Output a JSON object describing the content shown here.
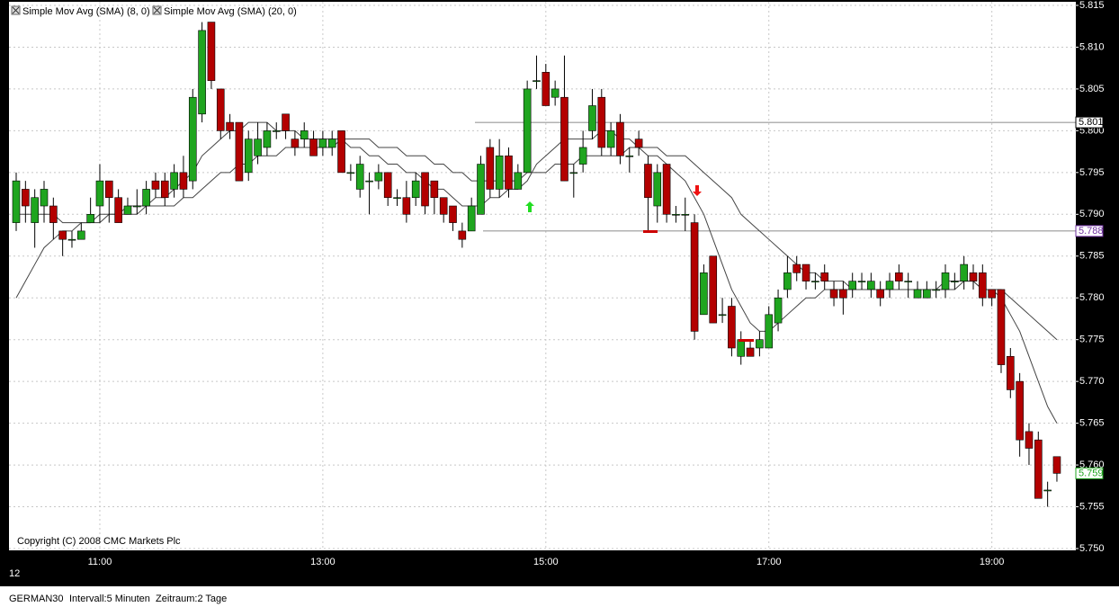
{
  "chart_data": {
    "type": "candlestick",
    "legend": [
      "Simple Mov Avg (SMA) (8, 0)",
      "Simple Mov Avg (SMA) (20, 0)"
    ],
    "copyright": "Copyright (C) 2008 CMC Markets Plc",
    "date_label": "12",
    "instrument": "GERMAN30",
    "interval": "Intervall:5 Minuten",
    "period": "Zeitraum:2 Tage",
    "up_color": "#1fa51f",
    "down_color": "#b30000",
    "grid": true,
    "categories": [
      null,
      null,
      null,
      null,
      null,
      null,
      null,
      null,
      null,
      "11:00",
      null,
      null,
      null,
      null,
      null,
      null,
      null,
      null,
      null,
      null,
      null,
      null,
      null,
      null,
      null,
      null,
      null,
      null,
      null,
      null,
      null,
      null,
      null,
      "13:00",
      null,
      null,
      null,
      null,
      null,
      null,
      null,
      null,
      null,
      null,
      null,
      null,
      null,
      null,
      null,
      null,
      null,
      null,
      null,
      null,
      null,
      null,
      null,
      "15:00",
      null,
      null,
      null,
      null,
      null,
      null,
      null,
      null,
      null,
      null,
      null,
      null,
      null,
      null,
      null,
      null,
      null,
      null,
      null,
      null,
      null,
      null,
      null,
      "17:00",
      null,
      null,
      null,
      null,
      null,
      null,
      null,
      null,
      null,
      null,
      null,
      null,
      null,
      null,
      null,
      null,
      null,
      null,
      null,
      null,
      null,
      null,
      null,
      "19:00",
      null,
      null,
      null,
      null,
      null,
      null,
      null
    ],
    "open": [
      5789,
      5793,
      5789,
      5791,
      5791,
      5788,
      5787,
      5787,
      5789,
      5791,
      5794,
      5792,
      5790,
      5791,
      5791,
      5794,
      5794,
      5793,
      5795,
      5794,
      5802,
      5813,
      5805,
      5801,
      5801,
      5795,
      5797,
      5798,
      5800,
      5802,
      5799,
      5799,
      5799,
      5798,
      5798,
      5800,
      5795,
      5793,
      5794,
      5794,
      5795,
      5792,
      5792,
      5792,
      5795,
      5794,
      5792,
      5791,
      5788,
      5788,
      5790,
      5798,
      5793,
      5797,
      5793,
      5795,
      5806,
      5807,
      5804,
      5804,
      5795,
      5796,
      5800,
      5804,
      5798,
      5801,
      5797,
      5799,
      5796,
      5791,
      5796,
      5790,
      5790,
      5789,
      5778,
      5785,
      5778,
      5779,
      5773,
      5774,
      5774,
      5774,
      5777,
      5781,
      5784,
      5784,
      5782,
      5783,
      5781,
      5781,
      5781,
      5782,
      5781,
      5781,
      5781,
      5783,
      5782,
      5780,
      5780,
      5781,
      5781,
      5782,
      5782,
      5783,
      5783,
      5781,
      5781,
      5773,
      5770,
      5764,
      5763,
      5757,
      5761
    ],
    "high": [
      5795,
      5794,
      5793,
      5794,
      5792,
      5788,
      5788,
      5789,
      5792,
      5796,
      5794,
      5793,
      5792,
      5793,
      5794,
      5795,
      5795,
      5796,
      5797,
      5805,
      5813,
      5813,
      5805,
      5802,
      5801,
      5800,
      5801,
      5801,
      5801,
      5802,
      5800,
      5801,
      5800,
      5800,
      5800,
      5800,
      5796,
      5797,
      5795,
      5796,
      5795,
      5793,
      5794,
      5795,
      5795,
      5794,
      5792,
      5791,
      5789,
      5792,
      5797,
      5799,
      5799,
      5798,
      5796,
      5806,
      5809,
      5808,
      5806,
      5809,
      5796,
      5800,
      5805,
      5805,
      5801,
      5802,
      5798,
      5800,
      5797,
      5796,
      5796,
      5791,
      5792,
      5790,
      5784,
      5785,
      5780,
      5780,
      5776,
      5775,
      5776,
      5779,
      5781,
      5785,
      5785,
      5784,
      5783,
      5784,
      5782,
      5782,
      5783,
      5783,
      5783,
      5782,
      5783,
      5784,
      5783,
      5782,
      5782,
      5782,
      5784,
      5783,
      5785,
      5784,
      5784,
      5781,
      5781,
      5774,
      5771,
      5765,
      5764,
      5758,
      5761
    ],
    "low": [
      5788,
      5789,
      5786,
      5789,
      5787,
      5785,
      5786,
      5787,
      5789,
      5789,
      5789,
      5789,
      5790,
      5790,
      5790,
      5792,
      5791,
      5792,
      5792,
      5793,
      5801,
      5805,
      5799,
      5799,
      5794,
      5794,
      5796,
      5797,
      5799,
      5799,
      5797,
      5798,
      5797,
      5797,
      5797,
      5795,
      5794,
      5792,
      5790,
      5793,
      5791,
      5791,
      5789,
      5791,
      5790,
      5790,
      5789,
      5788,
      5786,
      5788,
      5790,
      5792,
      5792,
      5792,
      5793,
      5795,
      5805,
      5803,
      5803,
      5794,
      5792,
      5795,
      5799,
      5797,
      5797,
      5796,
      5795,
      5797,
      5788,
      5789,
      5789,
      5789,
      5788,
      5775,
      5778,
      5777,
      5777,
      5773,
      5772,
      5773,
      5773,
      5774,
      5776,
      5780,
      5782,
      5781,
      5781,
      5781,
      5779,
      5778,
      5780,
      5781,
      5780,
      5779,
      5780,
      5781,
      5780,
      5780,
      5780,
      5780,
      5780,
      5781,
      5781,
      5781,
      5779,
      5779,
      5771,
      5768,
      5761,
      5760,
      5756,
      5755,
      5758
    ],
    "close": [
      5794,
      5791,
      5792,
      5793,
      5789,
      5787,
      5787,
      5788,
      5790,
      5794,
      5792,
      5789,
      5791,
      5791,
      5793,
      5793,
      5792,
      5795,
      5793,
      5804,
      5812,
      5806,
      5800,
      5800,
      5794,
      5799,
      5799,
      5800,
      5800,
      5800,
      5798,
      5800,
      5797,
      5799,
      5799,
      5795,
      5795,
      5796,
      5794,
      5795,
      5792,
      5792,
      5790,
      5794,
      5791,
      5792,
      5790,
      5789,
      5787,
      5791,
      5796,
      5793,
      5797,
      5793,
      5795,
      5805,
      5806,
      5803,
      5805,
      5794,
      5795,
      5798,
      5803,
      5798,
      5800,
      5797,
      5797,
      5798,
      5792,
      5795,
      5790,
      5790,
      5790,
      5776,
      5783,
      5777,
      5778,
      5774,
      5775,
      5773,
      5775,
      5778,
      5780,
      5783,
      5783,
      5782,
      5782,
      5782,
      5780,
      5780,
      5782,
      5782,
      5782,
      5780,
      5782,
      5782,
      5782,
      5781,
      5781,
      5781,
      5783,
      5782,
      5784,
      5782,
      5780,
      5780,
      5772,
      5769,
      5763,
      5762,
      5756,
      5757,
      5759
    ],
    "series": [
      {
        "name": "Simple Mov Avg (SMA) (8, 0)",
        "color": "#444444",
        "values": [
          5790,
          5790,
          5790,
          5790,
          5790,
          5789,
          5789,
          5789,
          5789,
          5790,
          5790,
          5790,
          5791,
          5791,
          5791,
          5792,
          5792,
          5793,
          5794,
          5795,
          5797,
          5798,
          5799,
          5800,
          5800,
          5801,
          5801,
          5801,
          5800,
          5800,
          5800,
          5799,
          5799,
          5799,
          5799,
          5799,
          5798,
          5798,
          5797,
          5797,
          5796,
          5796,
          5795,
          5795,
          5794,
          5793,
          5793,
          5792,
          5791,
          5791,
          5791,
          5792,
          5792,
          5793,
          5793,
          5794,
          5796,
          5797,
          5798,
          5799,
          5799,
          5799,
          5799,
          5800,
          5800,
          5799,
          5799,
          5798,
          5797,
          5797,
          5796,
          5795,
          5794,
          5792,
          5790,
          5787,
          5784,
          5781,
          5779,
          5777,
          5776,
          5776,
          5777,
          5778,
          5779,
          5780,
          5780,
          5781,
          5781,
          5781,
          5781,
          5781,
          5781,
          5781,
          5781,
          5781,
          5781,
          5781,
          5781,
          5781,
          5781,
          5781,
          5782,
          5782,
          5781,
          5781,
          5780,
          5778,
          5776,
          5773,
          5770,
          5767,
          5765
        ]
      },
      {
        "name": "Simple Mov Avg (SMA) (20, 0)",
        "color": "#444444",
        "values": [
          5780,
          5782,
          5784,
          5786,
          5787,
          5788,
          5788,
          5789,
          5789,
          5789,
          5790,
          5790,
          5790,
          5790,
          5791,
          5791,
          5791,
          5791,
          5792,
          5792,
          5793,
          5794,
          5795,
          5795,
          5796,
          5796,
          5797,
          5797,
          5797,
          5798,
          5798,
          5798,
          5798,
          5798,
          5798,
          5799,
          5799,
          5799,
          5799,
          5798,
          5798,
          5798,
          5797,
          5797,
          5797,
          5796,
          5796,
          5795,
          5795,
          5794,
          5794,
          5794,
          5794,
          5794,
          5794,
          5795,
          5795,
          5795,
          5796,
          5796,
          5796,
          5797,
          5797,
          5797,
          5797,
          5797,
          5798,
          5798,
          5798,
          5798,
          5797,
          5797,
          5797,
          5796,
          5795,
          5794,
          5793,
          5792,
          5790,
          5789,
          5788,
          5787,
          5786,
          5785,
          5784,
          5783,
          5783,
          5782,
          5782,
          5782,
          5781,
          5781,
          5781,
          5781,
          5781,
          5781,
          5781,
          5781,
          5781,
          5781,
          5782,
          5782,
          5782,
          5782,
          5781,
          5781,
          5781,
          5780,
          5779,
          5778,
          5777,
          5776,
          5775
        ]
      }
    ],
    "level_lines": [
      {
        "value": 5801,
        "label": "5.801",
        "color": "#000000"
      },
      {
        "value": 5788,
        "label": "5.788",
        "color": "#7030a0"
      }
    ],
    "last_price": {
      "value": 5759,
      "label": "5.759",
      "color": "#1fa51f"
    },
    "ylim": [
      5750,
      5815
    ],
    "yticks": [
      {
        "value": 5750,
        "label": "5.750"
      },
      {
        "value": 5755,
        "label": "5.755"
      },
      {
        "value": 5760,
        "label": "5.760"
      },
      {
        "value": 5765,
        "label": "5.765"
      },
      {
        "value": 5770,
        "label": "5.770"
      },
      {
        "value": 5775,
        "label": "5.775"
      },
      {
        "value": 5780,
        "label": "5.780"
      },
      {
        "value": 5785,
        "label": "5.785"
      },
      {
        "value": 5790,
        "label": "5.790"
      },
      {
        "value": 5795,
        "label": "5.795"
      },
      {
        "value": 5800,
        "label": "5.800"
      },
      {
        "value": 5805,
        "label": "5.805"
      },
      {
        "value": 5810,
        "label": "5.810"
      },
      {
        "value": 5815,
        "label": "5.815"
      }
    ]
  }
}
